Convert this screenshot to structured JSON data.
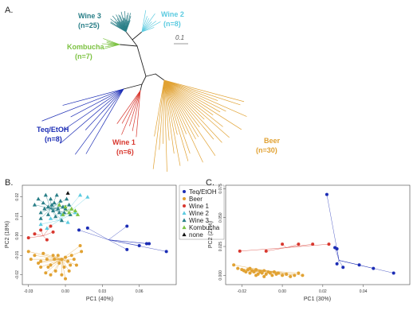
{
  "panels": {
    "a": "A.",
    "b": "B.",
    "c": "C."
  },
  "colors": {
    "teq": "#1c2db5",
    "beer": "#e1a233",
    "wine1": "#d8382f",
    "wine2": "#5ccbe0",
    "wine3": "#2a7f88",
    "kombucha": "#7cc242",
    "none": "#111111",
    "branch": "#222222"
  },
  "tree": {
    "scale_label": "0.1",
    "groups": [
      {
        "key": "wine3",
        "name": "Wine 3",
        "count": "(n=25)"
      },
      {
        "key": "wine2",
        "name": "Wine 2",
        "count": "(n=8)"
      },
      {
        "key": "kombucha",
        "name": "Kombucha",
        "count": "(n=7)"
      },
      {
        "key": "teq",
        "name": "Teq/EtOH",
        "count": "(n=8)"
      },
      {
        "key": "wine1",
        "name": "Wine 1",
        "count": "(n=6)"
      },
      {
        "key": "beer",
        "name": "Beer",
        "count": "(n=30)"
      }
    ]
  },
  "chart_data": [
    {
      "type": "scatter",
      "panel": "B.",
      "xlabel": "PC1 (40%)",
      "ylabel": "PC2 (18%)",
      "xlim": [
        -0.035,
        0.09
      ],
      "ylim": [
        -0.025,
        0.026
      ],
      "xticks": [
        "-0.03",
        "0.00",
        "0.03",
        "0.06"
      ],
      "yticks": [
        "-0.02",
        "-0.01",
        "0.00",
        "0.01",
        "0.02"
      ],
      "legend_position": "right",
      "legend": [
        {
          "key": "teq",
          "name": "Teq/EtOH",
          "marker": "circle"
        },
        {
          "key": "beer",
          "name": "Beer",
          "marker": "circle"
        },
        {
          "key": "wine1",
          "name": "Wine 1",
          "marker": "circle"
        },
        {
          "key": "wine2",
          "name": "Wine 2",
          "marker": "triangle"
        },
        {
          "key": "wine3",
          "name": "Wine 3",
          "marker": "triangle"
        },
        {
          "key": "kombucha",
          "name": "Kombucha",
          "marker": "triangle"
        },
        {
          "key": "none",
          "name": "none",
          "marker": "triangle"
        }
      ],
      "series": [
        {
          "name": "Teq/EtOH",
          "key": "teq",
          "centroid": [
            0.035,
            -0.002
          ],
          "points": [
            [
              0.018,
              0.004
            ],
            [
              0.011,
              0.003
            ],
            [
              0.05,
              0.005
            ],
            [
              0.05,
              -0.007
            ],
            [
              0.06,
              -0.005
            ],
            [
              0.066,
              -0.004
            ],
            [
              0.068,
              -0.004
            ],
            [
              0.082,
              -0.008
            ]
          ]
        },
        {
          "name": "Beer",
          "key": "beer",
          "centroid": [
            -0.003,
            -0.012
          ],
          "points": [
            [
              -0.03,
              -0.008
            ],
            [
              -0.025,
              -0.01
            ],
            [
              -0.02,
              -0.013
            ],
            [
              -0.015,
              -0.012
            ],
            [
              -0.012,
              -0.015
            ],
            [
              -0.01,
              -0.01
            ],
            [
              -0.008,
              -0.018
            ],
            [
              -0.005,
              -0.014
            ],
            [
              -0.003,
              -0.012
            ],
            [
              -0.001,
              -0.016
            ],
            [
              0.0,
              -0.011
            ],
            [
              0.002,
              -0.013
            ],
            [
              0.004,
              -0.015
            ],
            [
              0.005,
              -0.01
            ],
            [
              0.007,
              -0.012
            ],
            [
              -0.006,
              -0.01
            ],
            [
              -0.018,
              -0.009
            ],
            [
              -0.014,
              -0.016
            ],
            [
              -0.022,
              -0.014
            ],
            [
              -0.009,
              -0.012
            ],
            [
              0.012,
              -0.005
            ],
            [
              0.013,
              -0.008
            ],
            [
              -0.003,
              -0.02
            ],
            [
              -0.012,
              -0.02
            ],
            [
              0.003,
              -0.018
            ],
            [
              -0.02,
              -0.016
            ],
            [
              -0.028,
              -0.012
            ],
            [
              0.009,
              -0.015
            ],
            [
              -0.016,
              -0.019
            ],
            [
              0.0,
              -0.022
            ]
          ]
        },
        {
          "name": "Wine 1",
          "key": "wine1",
          "centroid": [
            -0.018,
            0.0
          ],
          "points": [
            [
              -0.03,
              -0.001
            ],
            [
              -0.025,
              0.001
            ],
            [
              -0.02,
              0.003
            ],
            [
              -0.015,
              -0.002
            ],
            [
              -0.01,
              0.002
            ],
            [
              -0.012,
              0.005
            ]
          ]
        },
        {
          "name": "Wine 2",
          "key": "wine2",
          "centroid": [
            -0.005,
            0.008
          ],
          "points": [
            [
              -0.02,
              0.006
            ],
            [
              -0.015,
              0.004
            ],
            [
              -0.012,
              0.009
            ],
            [
              -0.003,
              0.011
            ],
            [
              0.002,
              0.007
            ],
            [
              0.008,
              0.012
            ],
            [
              0.018,
              0.02
            ],
            [
              0.012,
              0.021
            ]
          ]
        },
        {
          "name": "Wine 3",
          "key": "wine3",
          "centroid": [
            -0.012,
            0.014
          ],
          "points": [
            [
              -0.025,
              0.016
            ],
            [
              -0.022,
              0.019
            ],
            [
              -0.02,
              0.012
            ],
            [
              -0.018,
              0.017
            ],
            [
              -0.016,
              0.021
            ],
            [
              -0.014,
              0.015
            ],
            [
              -0.012,
              0.019
            ],
            [
              -0.01,
              0.013
            ],
            [
              -0.009,
              0.017
            ],
            [
              -0.007,
              0.021
            ],
            [
              -0.006,
              0.014
            ],
            [
              -0.004,
              0.018
            ],
            [
              -0.002,
              0.015
            ],
            [
              -0.001,
              0.012
            ],
            [
              0.001,
              0.019
            ],
            [
              0.003,
              0.016
            ],
            [
              -0.02,
              0.009
            ],
            [
              -0.014,
              0.011
            ],
            [
              -0.008,
              0.01
            ],
            [
              -0.003,
              0.008
            ],
            [
              -0.017,
              0.014
            ],
            [
              -0.011,
              0.016
            ],
            [
              -0.005,
              0.012
            ],
            [
              0.0,
              0.014
            ],
            [
              0.004,
              0.011
            ]
          ]
        },
        {
          "name": "Kombucha",
          "key": "kombucha",
          "centroid": [
            0.0,
            0.013
          ],
          "points": [
            [
              -0.005,
              0.016
            ],
            [
              0.0,
              0.015
            ],
            [
              0.005,
              0.014
            ],
            [
              0.003,
              0.012
            ],
            [
              -0.002,
              0.011
            ],
            [
              0.008,
              0.013
            ],
            [
              0.01,
              0.011
            ]
          ]
        },
        {
          "name": "none",
          "key": "none",
          "centroid": [
            0.002,
            0.022
          ],
          "points": [
            [
              0.002,
              0.022
            ]
          ]
        }
      ]
    },
    {
      "type": "scatter",
      "panel": "C.",
      "xlabel": "PC1 (30%)",
      "ylabel": "PC2 (21%)",
      "xlim": [
        -0.028,
        0.063
      ],
      "ylim": [
        -0.008,
        0.078
      ],
      "xticks": [
        "-0.02",
        "0.00",
        "0.02",
        "0.04"
      ],
      "yticks": [
        "0.000",
        "0.025",
        "0.050",
        "0.075"
      ],
      "series": [
        {
          "name": "Teq/EtOH",
          "key": "teq",
          "centroid": [
            0.028,
            0.013
          ],
          "points": [
            [
              0.022,
              0.07
            ],
            [
              0.026,
              0.024
            ],
            [
              0.027,
              0.023
            ],
            [
              0.027,
              0.01
            ],
            [
              0.03,
              0.007
            ],
            [
              0.038,
              0.009
            ],
            [
              0.045,
              0.006
            ],
            [
              0.055,
              0.002
            ]
          ]
        },
        {
          "name": "Beer",
          "key": "beer",
          "centroid": [
            -0.008,
            0.004
          ],
          "points": [
            [
              -0.024,
              0.009
            ],
            [
              -0.022,
              0.006
            ],
            [
              -0.02,
              0.005
            ],
            [
              -0.019,
              0.004
            ],
            [
              -0.018,
              0.003
            ],
            [
              -0.017,
              0.005
            ],
            [
              -0.016,
              0.002
            ],
            [
              -0.015,
              0.004
            ],
            [
              -0.014,
              0.003
            ],
            [
              -0.013,
              0.005
            ],
            [
              -0.012,
              0.001
            ],
            [
              -0.011,
              0.003
            ],
            [
              -0.01,
              0.002
            ],
            [
              -0.009,
              0.004
            ],
            [
              -0.008,
              0.001
            ],
            [
              -0.007,
              0.003
            ],
            [
              -0.006,
              0.002
            ],
            [
              -0.005,
              0.0
            ],
            [
              -0.004,
              0.003
            ],
            [
              -0.003,
              0.001
            ],
            [
              -0.002,
              0.002
            ],
            [
              0.0,
              0.0
            ],
            [
              0.002,
              0.001
            ],
            [
              0.004,
              -0.001
            ],
            [
              0.006,
              0.0
            ],
            [
              0.008,
              0.002
            ],
            [
              -0.013,
              0.0
            ],
            [
              -0.009,
              -0.001
            ],
            [
              -0.016,
              0.006
            ],
            [
              0.01,
              0.0
            ]
          ]
        },
        {
          "name": "Wine 1",
          "key": "wine1",
          "centroid": [
            0.002,
            0.024
          ],
          "points": [
            [
              -0.021,
              0.021
            ],
            [
              -0.008,
              0.021
            ],
            [
              0.0,
              0.027
            ],
            [
              0.008,
              0.027
            ],
            [
              0.015,
              0.027
            ],
            [
              0.023,
              0.027
            ]
          ]
        }
      ]
    }
  ]
}
